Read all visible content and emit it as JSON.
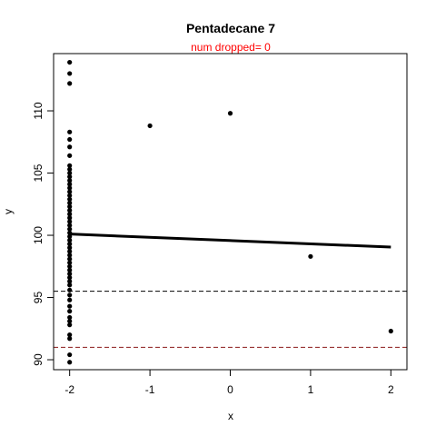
{
  "chart_data": {
    "type": "scatter",
    "title": "Pentadecane 7",
    "subtitle": "num dropped= 0",
    "xlabel": "x",
    "ylabel": "y",
    "xlim": [
      -2.2,
      2.2
    ],
    "ylim": [
      89.2,
      114.6
    ],
    "x_ticks": [
      "-2",
      "-1",
      "0",
      "1",
      "2"
    ],
    "y_ticks": [
      "90",
      "95",
      "100",
      "105",
      "110"
    ],
    "grid": false,
    "legend": "none",
    "colors": {
      "points": "#000000",
      "fit_line": "#000000",
      "lower_limit_line": "#000000",
      "red_limit_line": "#8B1A1A",
      "subtitle": "#FF0000"
    },
    "points": [
      {
        "x": -2,
        "y": 113.9
      },
      {
        "x": -2,
        "y": 113.0
      },
      {
        "x": -2,
        "y": 112.2
      },
      {
        "x": -2,
        "y": 108.3
      },
      {
        "x": -2,
        "y": 107.7
      },
      {
        "x": -2,
        "y": 107.1
      },
      {
        "x": -2,
        "y": 106.4
      },
      {
        "x": -2,
        "y": 105.6
      },
      {
        "x": -2,
        "y": 105.3
      },
      {
        "x": -2,
        "y": 105.0
      },
      {
        "x": -2,
        "y": 104.7
      },
      {
        "x": -2,
        "y": 104.4
      },
      {
        "x": -2,
        "y": 104.1
      },
      {
        "x": -2,
        "y": 103.8
      },
      {
        "x": -2,
        "y": 103.5
      },
      {
        "x": -2,
        "y": 103.2
      },
      {
        "x": -2,
        "y": 102.9
      },
      {
        "x": -2,
        "y": 102.6
      },
      {
        "x": -2,
        "y": 102.3
      },
      {
        "x": -2,
        "y": 102.0
      },
      {
        "x": -2,
        "y": 101.7
      },
      {
        "x": -2,
        "y": 101.4
      },
      {
        "x": -2,
        "y": 101.1
      },
      {
        "x": -2,
        "y": 100.8
      },
      {
        "x": -2,
        "y": 100.5
      },
      {
        "x": -2,
        "y": 100.2
      },
      {
        "x": -2,
        "y": 99.9
      },
      {
        "x": -2,
        "y": 99.6
      },
      {
        "x": -2,
        "y": 99.3
      },
      {
        "x": -2,
        "y": 99.0
      },
      {
        "x": -2,
        "y": 98.7
      },
      {
        "x": -2,
        "y": 98.4
      },
      {
        "x": -2,
        "y": 98.1
      },
      {
        "x": -2,
        "y": 97.8
      },
      {
        "x": -2,
        "y": 97.5
      },
      {
        "x": -2,
        "y": 97.2
      },
      {
        "x": -2,
        "y": 96.9
      },
      {
        "x": -2,
        "y": 96.6
      },
      {
        "x": -2,
        "y": 96.3
      },
      {
        "x": -2,
        "y": 96.0
      },
      {
        "x": -2,
        "y": 95.6
      },
      {
        "x": -2,
        "y": 95.2
      },
      {
        "x": -2,
        "y": 94.8
      },
      {
        "x": -2,
        "y": 94.3
      },
      {
        "x": -2,
        "y": 93.9
      },
      {
        "x": -2,
        "y": 93.4
      },
      {
        "x": -2,
        "y": 93.1
      },
      {
        "x": -2,
        "y": 92.8
      },
      {
        "x": -2,
        "y": 92.0
      },
      {
        "x": -2,
        "y": 91.7
      },
      {
        "x": -2,
        "y": 90.4
      },
      {
        "x": -2,
        "y": 89.8
      },
      {
        "x": -1,
        "y": 108.8
      },
      {
        "x": 0,
        "y": 109.8
      },
      {
        "x": 1,
        "y": 98.3
      },
      {
        "x": 2,
        "y": 92.3
      }
    ],
    "fit_line": {
      "x": [
        -2,
        2
      ],
      "y": [
        100.1,
        99.05
      ]
    },
    "hlines": [
      {
        "y": 95.5,
        "color": "#000000",
        "style": "dashed"
      },
      {
        "y": 91.0,
        "color": "#8B1A1A",
        "style": "dashed"
      }
    ]
  }
}
